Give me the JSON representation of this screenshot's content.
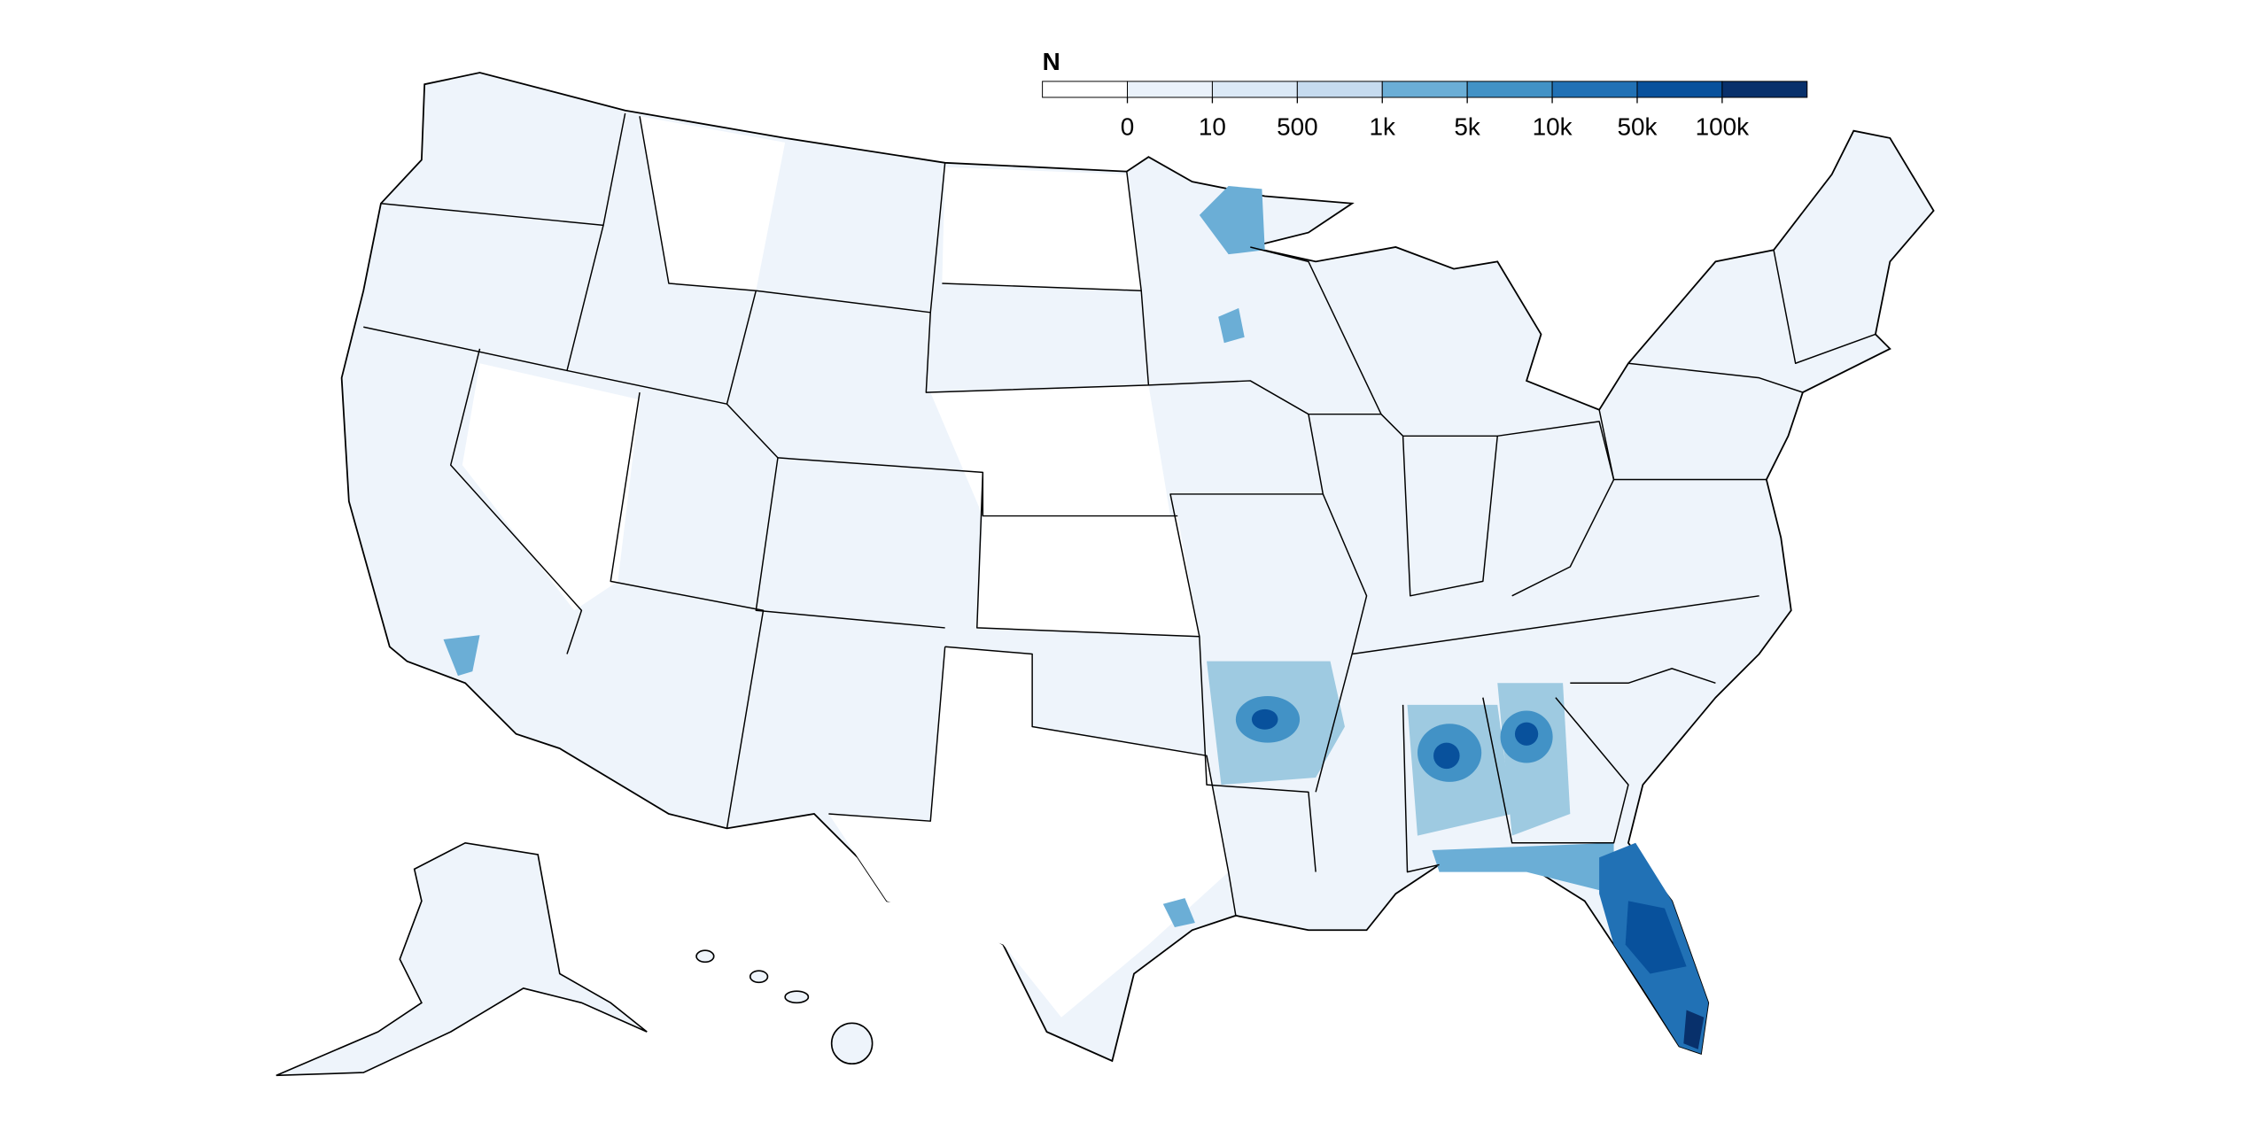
{
  "legend": {
    "title": "N",
    "colors": [
      "#ffffff",
      "#eaf2fb",
      "#dbe9f6",
      "#c6dbef",
      "#6baed6",
      "#4292c6",
      "#2171b5",
      "#08519c",
      "#08306b"
    ],
    "ticks": [
      "0",
      "10",
      "500",
      "1k",
      "5k",
      "10k",
      "50k",
      "100k"
    ]
  }
}
